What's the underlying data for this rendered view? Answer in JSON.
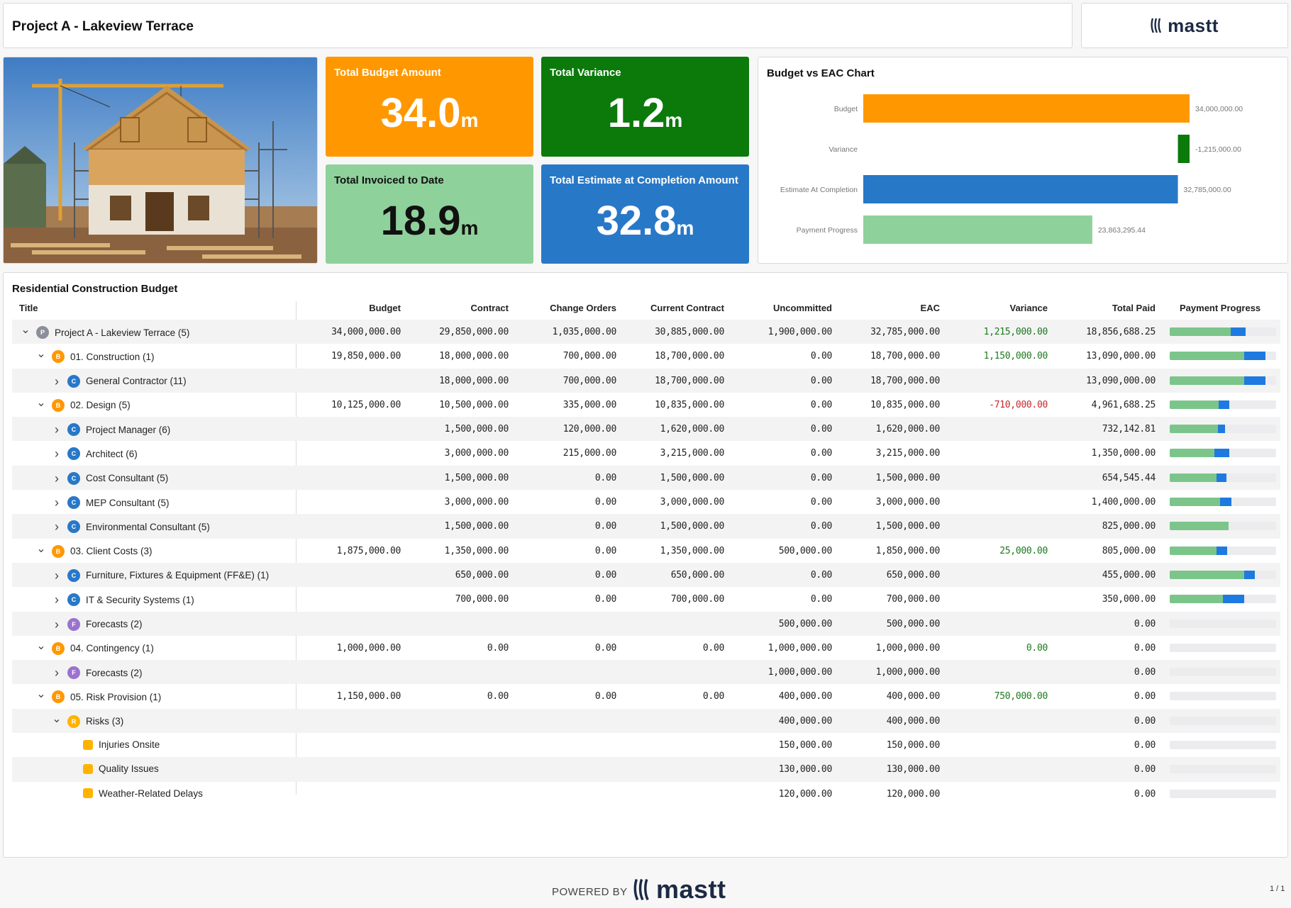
{
  "header": {
    "title": "Project A - Lakeview Terrace",
    "logo_text": "mastt"
  },
  "kpis": {
    "budget": {
      "label": "Total Budget Amount",
      "value": "34.0",
      "unit": "m",
      "color": "#ff9800"
    },
    "variance": {
      "label": "Total Variance",
      "value": "1.2",
      "unit": "m",
      "color": "#0b7a0b"
    },
    "invoiced": {
      "label": "Total Invoiced to Date",
      "value": "18.9",
      "unit": "m",
      "color": "#8fd19b"
    },
    "eac": {
      "label": "Total Estimate at Completion Amount",
      "value": "32.8",
      "unit": "m",
      "color": "#2878c8"
    }
  },
  "chart_data": {
    "type": "bar",
    "title": "Budget vs EAC Chart",
    "orientation": "horizontal",
    "categories": [
      "Budget",
      "Variance",
      "Estimate At Completion",
      "Payment Progress"
    ],
    "values": [
      34000000,
      -1215000,
      32785000,
      23863295.44
    ],
    "value_labels": [
      "34,000,000.00",
      "-1,215,000.00",
      "32,785,000.00",
      "23,863,295.44"
    ],
    "colors": [
      "#ff9800",
      "#0b7a0b",
      "#2878c8",
      "#8fd19b"
    ],
    "xlim": [
      0,
      34000000
    ],
    "grid": false,
    "legend": "none"
  },
  "table": {
    "title": "Residential Construction Budget",
    "columns": [
      "Title",
      "Budget",
      "Contract",
      "Change Orders",
      "Current Contract",
      "Uncommitted",
      "EAC",
      "Variance",
      "Total Paid",
      "Payment Progress"
    ],
    "rows": [
      {
        "level": 0,
        "chev": "v",
        "badge": "P",
        "title": "Project A - Lakeview Terrace (5)",
        "budget": "34,000,000.00",
        "contract": "29,850,000.00",
        "co": "1,035,000.00",
        "cc": "30,885,000.00",
        "unc": "1,900,000.00",
        "eac": "32,785,000.00",
        "var": "1,215,000.00",
        "vs": "pos",
        "paid": "18,856,688.25",
        "pg": 0.57,
        "pb": 0.14
      },
      {
        "level": 1,
        "chev": "v",
        "badge": "B",
        "title": "01. Construction (1)",
        "budget": "19,850,000.00",
        "contract": "18,000,000.00",
        "co": "700,000.00",
        "cc": "18,700,000.00",
        "unc": "0.00",
        "eac": "18,700,000.00",
        "var": "1,150,000.00",
        "vs": "pos",
        "paid": "13,090,000.00",
        "pg": 0.7,
        "pb": 0.2
      },
      {
        "level": 2,
        "chev": ">",
        "badge": "C",
        "title": "General Contractor (11)",
        "budget": "",
        "contract": "18,000,000.00",
        "co": "700,000.00",
        "cc": "18,700,000.00",
        "unc": "0.00",
        "eac": "18,700,000.00",
        "var": "",
        "vs": "",
        "paid": "13,090,000.00",
        "pg": 0.7,
        "pb": 0.2
      },
      {
        "level": 1,
        "chev": "v",
        "badge": "B",
        "title": "02. Design (5)",
        "budget": "10,125,000.00",
        "contract": "10,500,000.00",
        "co": "335,000.00",
        "cc": "10,835,000.00",
        "unc": "0.00",
        "eac": "10,835,000.00",
        "var": "-710,000.00",
        "vs": "neg",
        "paid": "4,961,688.25",
        "pg": 0.46,
        "pb": 0.1
      },
      {
        "level": 2,
        "chev": ">",
        "badge": "C",
        "title": "Project Manager (6)",
        "budget": "",
        "contract": "1,500,000.00",
        "co": "120,000.00",
        "cc": "1,620,000.00",
        "unc": "0.00",
        "eac": "1,620,000.00",
        "var": "",
        "vs": "",
        "paid": "732,142.81",
        "pg": 0.45,
        "pb": 0.07
      },
      {
        "level": 2,
        "chev": ">",
        "badge": "C",
        "title": "Architect (6)",
        "budget": "",
        "contract": "3,000,000.00",
        "co": "215,000.00",
        "cc": "3,215,000.00",
        "unc": "0.00",
        "eac": "3,215,000.00",
        "var": "",
        "vs": "",
        "paid": "1,350,000.00",
        "pg": 0.42,
        "pb": 0.14
      },
      {
        "level": 2,
        "chev": ">",
        "badge": "C",
        "title": "Cost Consultant (5)",
        "budget": "",
        "contract": "1,500,000.00",
        "co": "0.00",
        "cc": "1,500,000.00",
        "unc": "0.00",
        "eac": "1,500,000.00",
        "var": "",
        "vs": "",
        "paid": "654,545.44",
        "pg": 0.44,
        "pb": 0.09
      },
      {
        "level": 2,
        "chev": ">",
        "badge": "C",
        "title": "MEP Consultant (5)",
        "budget": "",
        "contract": "3,000,000.00",
        "co": "0.00",
        "cc": "3,000,000.00",
        "unc": "0.00",
        "eac": "3,000,000.00",
        "var": "",
        "vs": "",
        "paid": "1,400,000.00",
        "pg": 0.47,
        "pb": 0.11
      },
      {
        "level": 2,
        "chev": ">",
        "badge": "C",
        "title": "Environmental Consultant (5)",
        "budget": "",
        "contract": "1,500,000.00",
        "co": "0.00",
        "cc": "1,500,000.00",
        "unc": "0.00",
        "eac": "1,500,000.00",
        "var": "",
        "vs": "",
        "paid": "825,000.00",
        "pg": 0.55,
        "pb": 0.0
      },
      {
        "level": 1,
        "chev": "v",
        "badge": "B",
        "title": "03. Client Costs (3)",
        "budget": "1,875,000.00",
        "contract": "1,350,000.00",
        "co": "0.00",
        "cc": "1,350,000.00",
        "unc": "500,000.00",
        "eac": "1,850,000.00",
        "var": "25,000.00",
        "vs": "pos",
        "paid": "805,000.00",
        "pg": 0.44,
        "pb": 0.1
      },
      {
        "level": 2,
        "chev": ">",
        "badge": "C",
        "title": "Furniture, Fixtures & Equipment (FF&E) (1)",
        "budget": "",
        "contract": "650,000.00",
        "co": "0.00",
        "cc": "650,000.00",
        "unc": "0.00",
        "eac": "650,000.00",
        "var": "",
        "vs": "",
        "paid": "455,000.00",
        "pg": 0.7,
        "pb": 0.1
      },
      {
        "level": 2,
        "chev": ">",
        "badge": "C",
        "title": "IT & Security Systems (1)",
        "budget": "",
        "contract": "700,000.00",
        "co": "0.00",
        "cc": "700,000.00",
        "unc": "0.00",
        "eac": "700,000.00",
        "var": "",
        "vs": "",
        "paid": "350,000.00",
        "pg": 0.5,
        "pb": 0.2
      },
      {
        "level": 2,
        "chev": ">",
        "badge": "F",
        "title": "Forecasts (2)",
        "budget": "",
        "contract": "",
        "co": "",
        "cc": "",
        "unc": "500,000.00",
        "eac": "500,000.00",
        "var": "",
        "vs": "",
        "paid": "0.00",
        "pg": 0,
        "pb": 0
      },
      {
        "level": 1,
        "chev": "v",
        "badge": "B",
        "title": "04. Contingency (1)",
        "budget": "1,000,000.00",
        "contract": "0.00",
        "co": "0.00",
        "cc": "0.00",
        "unc": "1,000,000.00",
        "eac": "1,000,000.00",
        "var": "0.00",
        "vs": "pos",
        "paid": "0.00",
        "pg": 0,
        "pb": 0
      },
      {
        "level": 2,
        "chev": ">",
        "badge": "F",
        "title": "Forecasts (2)",
        "budget": "",
        "contract": "",
        "co": "",
        "cc": "",
        "unc": "1,000,000.00",
        "eac": "1,000,000.00",
        "var": "",
        "vs": "",
        "paid": "0.00",
        "pg": 0,
        "pb": 0
      },
      {
        "level": 1,
        "chev": "v",
        "badge": "B",
        "title": "05. Risk Provision (1)",
        "budget": "1,150,000.00",
        "contract": "0.00",
        "co": "0.00",
        "cc": "0.00",
        "unc": "400,000.00",
        "eac": "400,000.00",
        "var": "750,000.00",
        "vs": "pos",
        "paid": "0.00",
        "pg": 0,
        "pb": 0
      },
      {
        "level": 2,
        "chev": "v",
        "badge": "R",
        "title": "Risks (3)",
        "budget": "",
        "contract": "",
        "co": "",
        "cc": "",
        "unc": "400,000.00",
        "eac": "400,000.00",
        "var": "",
        "vs": "",
        "paid": "0.00",
        "pg": 0,
        "pb": 0
      },
      {
        "level": 3,
        "chev": "",
        "badge": "sq",
        "title": "Injuries Onsite",
        "budget": "",
        "contract": "",
        "co": "",
        "cc": "",
        "unc": "150,000.00",
        "eac": "150,000.00",
        "var": "",
        "vs": "",
        "paid": "0.00",
        "pg": 0,
        "pb": 0
      },
      {
        "level": 3,
        "chev": "",
        "badge": "sq",
        "title": "Quality Issues",
        "budget": "",
        "contract": "",
        "co": "",
        "cc": "",
        "unc": "130,000.00",
        "eac": "130,000.00",
        "var": "",
        "vs": "",
        "paid": "0.00",
        "pg": 0,
        "pb": 0
      },
      {
        "level": 3,
        "chev": "",
        "badge": "sq",
        "title": "Weather-Related Delays",
        "budget": "",
        "contract": "",
        "co": "",
        "cc": "",
        "unc": "120,000.00",
        "eac": "120,000.00",
        "var": "",
        "vs": "",
        "paid": "0.00",
        "pg": 0,
        "pb": 0
      }
    ]
  },
  "footer": {
    "powered_by": "POWERED BY",
    "logo_text": "mastt",
    "page": "1 / 1"
  }
}
